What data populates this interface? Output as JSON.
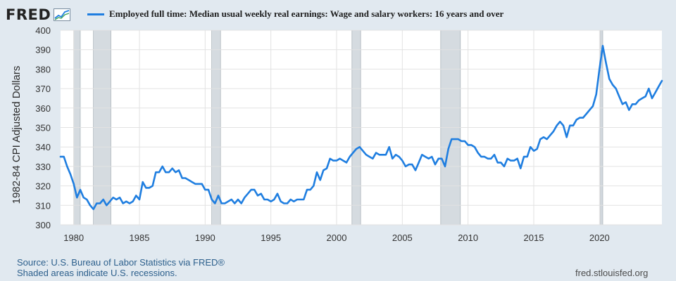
{
  "header": {
    "logo_text": "FRED",
    "legend_label": "Employed full time: Median usual weekly real earnings: Wage and salary workers: 16 years and over"
  },
  "colors": {
    "line": "#1f7ee0",
    "recession": "#d5dbe0",
    "plot_bg": "#ffffff",
    "page_bg": "#e1e9f0"
  },
  "chart_data": {
    "type": "line",
    "ylabel": "1982-84 CPI Adjusted Dollars",
    "ylim": [
      300,
      400
    ],
    "xlim": [
      1979.0,
      2024.75
    ],
    "y_ticks": [
      300,
      310,
      320,
      330,
      340,
      350,
      360,
      370,
      380,
      390,
      400
    ],
    "x_ticks": [
      1980,
      1985,
      1990,
      1995,
      2000,
      2005,
      2010,
      2015,
      2020
    ],
    "grid": true,
    "legend": "top",
    "recessions": [
      {
        "start": 1980.0,
        "end": 1980.5
      },
      {
        "start": 1981.5,
        "end": 1982.83
      },
      {
        "start": 1990.5,
        "end": 1991.17
      },
      {
        "start": 2001.17,
        "end": 2001.83
      },
      {
        "start": 2007.92,
        "end": 2009.42
      },
      {
        "start": 2020.08,
        "end": 2020.25
      }
    ],
    "series": [
      {
        "name": "Employed full time: Median usual weekly real earnings: Wage and salary workers: 16 years and over",
        "points": [
          [
            1979.0,
            335
          ],
          [
            1979.25,
            335
          ],
          [
            1979.5,
            330
          ],
          [
            1979.75,
            326
          ],
          [
            1980.0,
            321
          ],
          [
            1980.25,
            314
          ],
          [
            1980.5,
            318
          ],
          [
            1980.75,
            314
          ],
          [
            1981.0,
            313
          ],
          [
            1981.25,
            310
          ],
          [
            1981.5,
            308
          ],
          [
            1981.75,
            311
          ],
          [
            1982.0,
            311
          ],
          [
            1982.25,
            313
          ],
          [
            1982.5,
            310
          ],
          [
            1982.75,
            312
          ],
          [
            1983.0,
            314
          ],
          [
            1983.25,
            313
          ],
          [
            1983.5,
            314
          ],
          [
            1983.75,
            311
          ],
          [
            1984.0,
            312
          ],
          [
            1984.25,
            311
          ],
          [
            1984.5,
            312
          ],
          [
            1984.75,
            315
          ],
          [
            1985.0,
            313
          ],
          [
            1985.25,
            322
          ],
          [
            1985.5,
            319
          ],
          [
            1985.75,
            319
          ],
          [
            1986.0,
            320
          ],
          [
            1986.25,
            327
          ],
          [
            1986.5,
            327
          ],
          [
            1986.75,
            330
          ],
          [
            1987.0,
            327
          ],
          [
            1987.25,
            327
          ],
          [
            1987.5,
            329
          ],
          [
            1987.75,
            327
          ],
          [
            1988.0,
            328
          ],
          [
            1988.25,
            324
          ],
          [
            1988.5,
            324
          ],
          [
            1988.75,
            323
          ],
          [
            1989.0,
            322
          ],
          [
            1989.25,
            321
          ],
          [
            1989.5,
            321
          ],
          [
            1989.75,
            321
          ],
          [
            1990.0,
            318
          ],
          [
            1990.25,
            318
          ],
          [
            1990.5,
            313
          ],
          [
            1990.75,
            311
          ],
          [
            1991.0,
            315
          ],
          [
            1991.25,
            311
          ],
          [
            1991.5,
            311
          ],
          [
            1991.75,
            312
          ],
          [
            1992.0,
            313
          ],
          [
            1992.25,
            311
          ],
          [
            1992.5,
            313
          ],
          [
            1992.75,
            311
          ],
          [
            1993.0,
            314
          ],
          [
            1993.25,
            316
          ],
          [
            1993.5,
            318
          ],
          [
            1993.75,
            318
          ],
          [
            1994.0,
            315
          ],
          [
            1994.25,
            316
          ],
          [
            1994.5,
            313
          ],
          [
            1994.75,
            313
          ],
          [
            1995.0,
            312
          ],
          [
            1995.25,
            313
          ],
          [
            1995.5,
            316
          ],
          [
            1995.75,
            312
          ],
          [
            1996.0,
            311
          ],
          [
            1996.25,
            311
          ],
          [
            1996.5,
            313
          ],
          [
            1996.75,
            312
          ],
          [
            1997.0,
            313
          ],
          [
            1997.25,
            313
          ],
          [
            1997.5,
            313
          ],
          [
            1997.75,
            318
          ],
          [
            1998.0,
            318
          ],
          [
            1998.25,
            320
          ],
          [
            1998.5,
            327
          ],
          [
            1998.75,
            323
          ],
          [
            1999.0,
            328
          ],
          [
            1999.25,
            329
          ],
          [
            1999.5,
            334
          ],
          [
            1999.75,
            333
          ],
          [
            2000.0,
            333
          ],
          [
            2000.25,
            334
          ],
          [
            2000.5,
            333
          ],
          [
            2000.75,
            332
          ],
          [
            2001.0,
            335
          ],
          [
            2001.25,
            337
          ],
          [
            2001.5,
            339
          ],
          [
            2001.75,
            340
          ],
          [
            2002.0,
            338
          ],
          [
            2002.25,
            336
          ],
          [
            2002.5,
            335
          ],
          [
            2002.75,
            334
          ],
          [
            2003.0,
            337
          ],
          [
            2003.25,
            336
          ],
          [
            2003.5,
            336
          ],
          [
            2003.75,
            336
          ],
          [
            2004.0,
            340
          ],
          [
            2004.25,
            334
          ],
          [
            2004.5,
            336
          ],
          [
            2004.75,
            335
          ],
          [
            2005.0,
            333
          ],
          [
            2005.25,
            330
          ],
          [
            2005.5,
            331
          ],
          [
            2005.75,
            331
          ],
          [
            2006.0,
            328
          ],
          [
            2006.25,
            332
          ],
          [
            2006.5,
            336
          ],
          [
            2006.75,
            335
          ],
          [
            2007.0,
            334
          ],
          [
            2007.25,
            335
          ],
          [
            2007.5,
            331
          ],
          [
            2007.75,
            334
          ],
          [
            2008.0,
            334
          ],
          [
            2008.25,
            330
          ],
          [
            2008.5,
            339
          ],
          [
            2008.75,
            344
          ],
          [
            2009.0,
            344
          ],
          [
            2009.25,
            344
          ],
          [
            2009.5,
            343
          ],
          [
            2009.75,
            343
          ],
          [
            2010.0,
            341
          ],
          [
            2010.25,
            341
          ],
          [
            2010.5,
            340
          ],
          [
            2010.75,
            337
          ],
          [
            2011.0,
            335
          ],
          [
            2011.25,
            335
          ],
          [
            2011.5,
            334
          ],
          [
            2011.75,
            334
          ],
          [
            2012.0,
            336
          ],
          [
            2012.25,
            332
          ],
          [
            2012.5,
            332
          ],
          [
            2012.75,
            330
          ],
          [
            2013.0,
            334
          ],
          [
            2013.25,
            333
          ],
          [
            2013.5,
            333
          ],
          [
            2013.75,
            334
          ],
          [
            2014.0,
            329
          ],
          [
            2014.25,
            335
          ],
          [
            2014.5,
            335
          ],
          [
            2014.75,
            340
          ],
          [
            2015.0,
            338
          ],
          [
            2015.25,
            339
          ],
          [
            2015.5,
            344
          ],
          [
            2015.75,
            345
          ],
          [
            2016.0,
            344
          ],
          [
            2016.25,
            346
          ],
          [
            2016.5,
            348
          ],
          [
            2016.75,
            351
          ],
          [
            2017.0,
            353
          ],
          [
            2017.25,
            351
          ],
          [
            2017.5,
            345
          ],
          [
            2017.75,
            351
          ],
          [
            2018.0,
            351
          ],
          [
            2018.25,
            354
          ],
          [
            2018.5,
            355
          ],
          [
            2018.75,
            355
          ],
          [
            2019.0,
            357
          ],
          [
            2019.25,
            359
          ],
          [
            2019.5,
            361
          ],
          [
            2019.75,
            367
          ],
          [
            2020.0,
            380
          ],
          [
            2020.25,
            392
          ],
          [
            2020.5,
            383
          ],
          [
            2020.75,
            375
          ],
          [
            2021.0,
            372
          ],
          [
            2021.25,
            370
          ],
          [
            2021.5,
            366
          ],
          [
            2021.75,
            362
          ],
          [
            2022.0,
            363
          ],
          [
            2022.25,
            359
          ],
          [
            2022.5,
            362
          ],
          [
            2022.75,
            362
          ],
          [
            2023.0,
            364
          ],
          [
            2023.25,
            365
          ],
          [
            2023.5,
            366
          ],
          [
            2023.75,
            370
          ],
          [
            2024.0,
            365
          ],
          [
            2024.25,
            368
          ],
          [
            2024.5,
            371
          ],
          [
            2024.75,
            374
          ]
        ]
      }
    ]
  },
  "footer": {
    "source": "Source: U.S. Bureau of Labor Statistics via FRED®",
    "recession_note": "Shaded areas indicate U.S. recessions.",
    "url": "fred.stlouisfed.org"
  }
}
